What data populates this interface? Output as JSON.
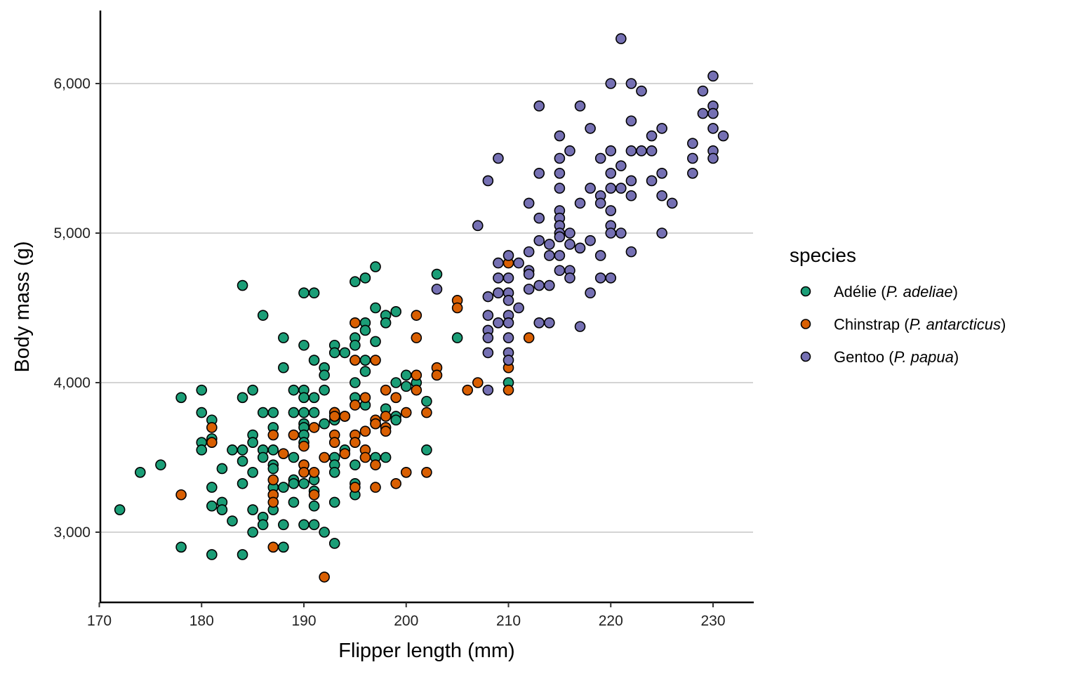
{
  "chart_data": {
    "type": "scatter",
    "xlabel": "Flipper length (mm)",
    "ylabel": "Body mass (g)",
    "xlim": [
      169.8,
      233.9
    ],
    "ylim": [
      2540,
      6480
    ],
    "xticks": [
      170,
      180,
      190,
      200,
      210,
      220,
      230
    ],
    "xtick_labels": [
      "170",
      "180",
      "190",
      "200",
      "210",
      "220",
      "230"
    ],
    "yticks": [
      3000,
      4000,
      5000,
      6000
    ],
    "ytick_labels": [
      "3,000",
      "4,000",
      "5,000",
      "6,000"
    ],
    "grid": "horizontal major",
    "legend": {
      "title": "species",
      "placement": "right"
    },
    "series": [
      {
        "name": "Adélie",
        "name_prefix": "Adélie (",
        "name_italic": "P. adeliae",
        "name_suffix": ")",
        "color": "#1B9E77",
        "points": [
          [
            172,
            3150
          ],
          [
            174,
            3400
          ],
          [
            176,
            3450
          ],
          [
            178,
            3900
          ],
          [
            178,
            2900
          ],
          [
            180,
            3950
          ],
          [
            180,
            3800
          ],
          [
            180,
            3600
          ],
          [
            180,
            3550
          ],
          [
            181,
            3750
          ],
          [
            181,
            3625
          ],
          [
            181,
            3300
          ],
          [
            181,
            3175
          ],
          [
            181,
            2850
          ],
          [
            182,
            3425
          ],
          [
            182,
            3200
          ],
          [
            182,
            3150
          ],
          [
            183,
            3550
          ],
          [
            183,
            3075
          ],
          [
            184,
            4650
          ],
          [
            184,
            3900
          ],
          [
            184,
            3550
          ],
          [
            184,
            3475
          ],
          [
            184,
            3325
          ],
          [
            184,
            2850
          ],
          [
            185,
            3950
          ],
          [
            185,
            3650
          ],
          [
            185,
            3600
          ],
          [
            185,
            3400
          ],
          [
            185,
            3150
          ],
          [
            185,
            3000
          ],
          [
            186,
            4450
          ],
          [
            186,
            3800
          ],
          [
            186,
            3550
          ],
          [
            186,
            3500
          ],
          [
            186,
            3100
          ],
          [
            186,
            3050
          ],
          [
            187,
            3800
          ],
          [
            187,
            3700
          ],
          [
            187,
            3550
          ],
          [
            187,
            3450
          ],
          [
            187,
            3425
          ],
          [
            187,
            3300
          ],
          [
            187,
            3250
          ],
          [
            187,
            3150
          ],
          [
            188,
            4300
          ],
          [
            188,
            4100
          ],
          [
            188,
            3300
          ],
          [
            188,
            3050
          ],
          [
            188,
            2900
          ],
          [
            189,
            3950
          ],
          [
            189,
            3800
          ],
          [
            189,
            3500
          ],
          [
            189,
            3350
          ],
          [
            189,
            3325
          ],
          [
            189,
            3200
          ],
          [
            190,
            4600
          ],
          [
            190,
            4250
          ],
          [
            190,
            3950
          ],
          [
            190,
            3900
          ],
          [
            190,
            3800
          ],
          [
            190,
            3725
          ],
          [
            190,
            3700
          ],
          [
            190,
            3650
          ],
          [
            190,
            3600
          ],
          [
            190,
            3450
          ],
          [
            190,
            3325
          ],
          [
            190,
            3050
          ],
          [
            191,
            4600
          ],
          [
            191,
            4150
          ],
          [
            191,
            3900
          ],
          [
            191,
            3800
          ],
          [
            191,
            3350
          ],
          [
            191,
            3275
          ],
          [
            191,
            3175
          ],
          [
            191,
            3050
          ],
          [
            192,
            4100
          ],
          [
            192,
            4050
          ],
          [
            192,
            3950
          ],
          [
            192,
            3725
          ],
          [
            192,
            3000
          ],
          [
            193,
            4250
          ],
          [
            193,
            4200
          ],
          [
            193,
            3800
          ],
          [
            193,
            3750
          ],
          [
            193,
            3500
          ],
          [
            193,
            3450
          ],
          [
            193,
            3400
          ],
          [
            193,
            3200
          ],
          [
            193,
            2925
          ],
          [
            194,
            4200
          ],
          [
            194,
            3775
          ],
          [
            194,
            3550
          ],
          [
            195,
            4675
          ],
          [
            195,
            4300
          ],
          [
            195,
            4250
          ],
          [
            195,
            4000
          ],
          [
            195,
            3900
          ],
          [
            195,
            3450
          ],
          [
            195,
            3325
          ],
          [
            195,
            3250
          ],
          [
            196,
            4700
          ],
          [
            196,
            4400
          ],
          [
            196,
            4350
          ],
          [
            196,
            4150
          ],
          [
            196,
            4075
          ],
          [
            196,
            3850
          ],
          [
            197,
            4775
          ],
          [
            197,
            4500
          ],
          [
            197,
            4275
          ],
          [
            197,
            3725
          ],
          [
            197,
            3500
          ],
          [
            198,
            4450
          ],
          [
            198,
            4400
          ],
          [
            198,
            3825
          ],
          [
            198,
            3500
          ],
          [
            199,
            4475
          ],
          [
            199,
            4000
          ],
          [
            199,
            3775
          ],
          [
            199,
            3750
          ],
          [
            200,
            4050
          ],
          [
            200,
            3975
          ],
          [
            201,
            4000
          ],
          [
            202,
            3875
          ],
          [
            202,
            3550
          ],
          [
            203,
            4725
          ],
          [
            205,
            4300
          ],
          [
            210,
            4000
          ]
        ]
      },
      {
        "name": "Chinstrap",
        "name_prefix": "Chinstrap (",
        "name_italic": "P. antarcticus",
        "name_suffix": ")",
        "color": "#D95F02",
        "points": [
          [
            178,
            3250
          ],
          [
            181,
            3700
          ],
          [
            181,
            3600
          ],
          [
            187,
            3650
          ],
          [
            187,
            3350
          ],
          [
            187,
            3250
          ],
          [
            187,
            3200
          ],
          [
            187,
            2900
          ],
          [
            188,
            3525
          ],
          [
            189,
            3650
          ],
          [
            190,
            3575
          ],
          [
            190,
            3450
          ],
          [
            190,
            3400
          ],
          [
            191,
            3700
          ],
          [
            191,
            3400
          ],
          [
            191,
            3250
          ],
          [
            192,
            3500
          ],
          [
            192,
            2700
          ],
          [
            193,
            3800
          ],
          [
            193,
            3775
          ],
          [
            193,
            3650
          ],
          [
            193,
            3600
          ],
          [
            194,
            3775
          ],
          [
            194,
            3525
          ],
          [
            195,
            4400
          ],
          [
            195,
            4150
          ],
          [
            195,
            3850
          ],
          [
            195,
            3650
          ],
          [
            195,
            3600
          ],
          [
            195,
            3300
          ],
          [
            196,
            3900
          ],
          [
            196,
            3675
          ],
          [
            196,
            3550
          ],
          [
            196,
            3500
          ],
          [
            197,
            4150
          ],
          [
            197,
            3750
          ],
          [
            197,
            3725
          ],
          [
            197,
            3450
          ],
          [
            197,
            3300
          ],
          [
            198,
            3950
          ],
          [
            198,
            3775
          ],
          [
            198,
            3700
          ],
          [
            198,
            3675
          ],
          [
            199,
            3900
          ],
          [
            199,
            3325
          ],
          [
            200,
            3800
          ],
          [
            200,
            3400
          ],
          [
            201,
            4450
          ],
          [
            201,
            4300
          ],
          [
            201,
            4050
          ],
          [
            201,
            3950
          ],
          [
            202,
            3800
          ],
          [
            202,
            3400
          ],
          [
            203,
            4100
          ],
          [
            203,
            4050
          ],
          [
            205,
            4550
          ],
          [
            205,
            4500
          ],
          [
            206,
            3950
          ],
          [
            207,
            4000
          ],
          [
            210,
            4800
          ],
          [
            210,
            4100
          ],
          [
            210,
            3950
          ],
          [
            212,
            4300
          ]
        ]
      },
      {
        "name": "Gentoo",
        "name_prefix": "Gentoo (",
        "name_italic": "P. papua",
        "name_suffix": ")",
        "color": "#7570B3",
        "points": [
          [
            203,
            4625
          ],
          [
            207,
            5050
          ],
          [
            208,
            5350
          ],
          [
            208,
            4575
          ],
          [
            208,
            4450
          ],
          [
            208,
            4350
          ],
          [
            208,
            4300
          ],
          [
            208,
            4200
          ],
          [
            208,
            3950
          ],
          [
            209,
            5500
          ],
          [
            209,
            4800
          ],
          [
            209,
            4700
          ],
          [
            209,
            4600
          ],
          [
            209,
            4400
          ],
          [
            210,
            4850
          ],
          [
            210,
            4700
          ],
          [
            210,
            4600
          ],
          [
            210,
            4550
          ],
          [
            210,
            4450
          ],
          [
            210,
            4400
          ],
          [
            210,
            4300
          ],
          [
            210,
            4200
          ],
          [
            210,
            4150
          ],
          [
            211,
            4800
          ],
          [
            211,
            4500
          ],
          [
            212,
            5200
          ],
          [
            212,
            4875
          ],
          [
            212,
            4750
          ],
          [
            212,
            4725
          ],
          [
            212,
            4625
          ],
          [
            213,
            5850
          ],
          [
            213,
            5400
          ],
          [
            213,
            5100
          ],
          [
            213,
            4950
          ],
          [
            213,
            4650
          ],
          [
            213,
            4400
          ],
          [
            214,
            4925
          ],
          [
            214,
            4850
          ],
          [
            214,
            4650
          ],
          [
            214,
            4400
          ],
          [
            215,
            5650
          ],
          [
            215,
            5500
          ],
          [
            215,
            5400
          ],
          [
            215,
            5300
          ],
          [
            215,
            5150
          ],
          [
            215,
            5100
          ],
          [
            215,
            5050
          ],
          [
            215,
            5000
          ],
          [
            215,
            4975
          ],
          [
            215,
            4850
          ],
          [
            215,
            4750
          ],
          [
            216,
            5550
          ],
          [
            216,
            5000
          ],
          [
            216,
            4925
          ],
          [
            216,
            4750
          ],
          [
            216,
            4700
          ],
          [
            217,
            5850
          ],
          [
            217,
            5200
          ],
          [
            217,
            4900
          ],
          [
            217,
            4375
          ],
          [
            218,
            5700
          ],
          [
            218,
            5300
          ],
          [
            218,
            4950
          ],
          [
            218,
            4600
          ],
          [
            219,
            5500
          ],
          [
            219,
            5250
          ],
          [
            219,
            5200
          ],
          [
            219,
            4850
          ],
          [
            219,
            4700
          ],
          [
            220,
            6000
          ],
          [
            220,
            5550
          ],
          [
            220,
            5400
          ],
          [
            220,
            5300
          ],
          [
            220,
            5150
          ],
          [
            220,
            5050
          ],
          [
            220,
            5000
          ],
          [
            220,
            4700
          ],
          [
            221,
            6300
          ],
          [
            221,
            5450
          ],
          [
            221,
            5300
          ],
          [
            221,
            5000
          ],
          [
            222,
            6000
          ],
          [
            222,
            5750
          ],
          [
            222,
            5550
          ],
          [
            222,
            5350
          ],
          [
            222,
            5250
          ],
          [
            222,
            4875
          ],
          [
            223,
            5950
          ],
          [
            223,
            5550
          ],
          [
            224,
            5650
          ],
          [
            224,
            5550
          ],
          [
            224,
            5350
          ],
          [
            225,
            5700
          ],
          [
            225,
            5400
          ],
          [
            225,
            5250
          ],
          [
            225,
            5000
          ],
          [
            226,
            5200
          ],
          [
            228,
            5600
          ],
          [
            228,
            5500
          ],
          [
            228,
            5400
          ],
          [
            229,
            5950
          ],
          [
            229,
            5800
          ],
          [
            230,
            6050
          ],
          [
            230,
            5850
          ],
          [
            230,
            5800
          ],
          [
            230,
            5700
          ],
          [
            230,
            5550
          ],
          [
            230,
            5500
          ],
          [
            231,
            5650
          ]
        ]
      }
    ]
  }
}
